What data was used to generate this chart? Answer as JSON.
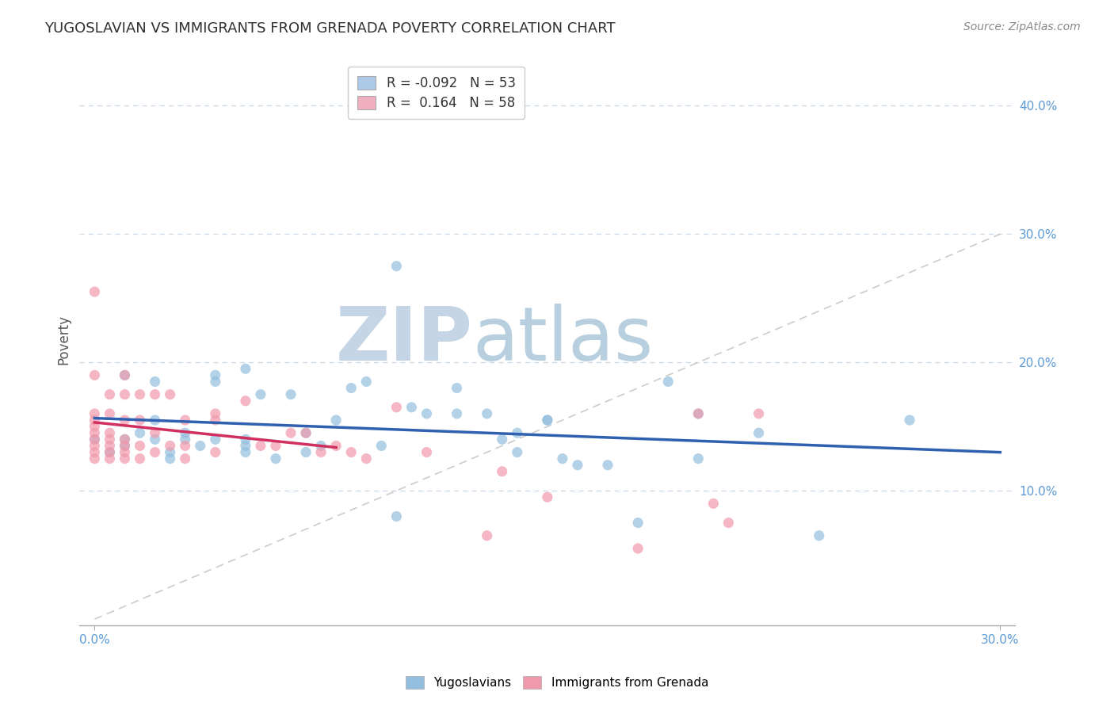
{
  "title": "YUGOSLAVIAN VS IMMIGRANTS FROM GRENADA POVERTY CORRELATION CHART",
  "source": "Source: ZipAtlas.com",
  "ylabel_label": "Poverty",
  "xlim": [
    -0.005,
    0.305
  ],
  "ylim": [
    -0.005,
    0.44
  ],
  "x_ticks": [
    0.0,
    0.3
  ],
  "x_tick_labels": [
    "0.0%",
    "30.0%"
  ],
  "y_ticks": [
    0.1,
    0.2,
    0.3,
    0.4
  ],
  "y_tick_labels": [
    "10.0%",
    "20.0%",
    "30.0%",
    "40.0%"
  ],
  "grid_color": "#c8d8e8",
  "background_color": "#ffffff",
  "title_color": "#303030",
  "source_color": "#888888",
  "axis_color": "#aaaaaa",
  "tick_color": "#5b9bd5",
  "watermark_zip": "ZIP",
  "watermark_atlas": "atlas",
  "watermark_color_zip": "#c5d5e5",
  "watermark_color_atlas": "#b8cfe0",
  "legend_R1": "-0.092",
  "legend_N1": "53",
  "legend_R2": "0.164",
  "legend_N2": "58",
  "legend_color1": "#adc9e8",
  "legend_color2": "#f0b0bf",
  "series1_color": "#93bedd",
  "series2_color": "#f099aa",
  "series1_label": "Yugoslavians",
  "series2_label": "Immigrants from Grenada",
  "series1_line_color": "#3060b0",
  "series2_line_color": "#d03060",
  "diagonal_line_color": "#cccccc",
  "series1_x": [
    0.0,
    0.005,
    0.01,
    0.01,
    0.01,
    0.015,
    0.02,
    0.02,
    0.02,
    0.025,
    0.025,
    0.03,
    0.03,
    0.035,
    0.04,
    0.04,
    0.04,
    0.05,
    0.05,
    0.05,
    0.05,
    0.055,
    0.06,
    0.065,
    0.07,
    0.07,
    0.075,
    0.08,
    0.085,
    0.09,
    0.095,
    0.1,
    0.1,
    0.105,
    0.11,
    0.12,
    0.12,
    0.13,
    0.135,
    0.14,
    0.14,
    0.15,
    0.15,
    0.155,
    0.16,
    0.17,
    0.18,
    0.19,
    0.2,
    0.2,
    0.22,
    0.24,
    0.27
  ],
  "series1_y": [
    0.14,
    0.13,
    0.135,
    0.14,
    0.19,
    0.145,
    0.14,
    0.155,
    0.185,
    0.125,
    0.13,
    0.14,
    0.145,
    0.135,
    0.14,
    0.185,
    0.19,
    0.13,
    0.135,
    0.14,
    0.195,
    0.175,
    0.125,
    0.175,
    0.13,
    0.145,
    0.135,
    0.155,
    0.18,
    0.185,
    0.135,
    0.08,
    0.275,
    0.165,
    0.16,
    0.16,
    0.18,
    0.16,
    0.14,
    0.13,
    0.145,
    0.155,
    0.155,
    0.125,
    0.12,
    0.12,
    0.075,
    0.185,
    0.125,
    0.16,
    0.145,
    0.065,
    0.155
  ],
  "series2_x": [
    0.0,
    0.0,
    0.0,
    0.0,
    0.0,
    0.0,
    0.0,
    0.0,
    0.0,
    0.0,
    0.005,
    0.005,
    0.005,
    0.005,
    0.005,
    0.005,
    0.005,
    0.01,
    0.01,
    0.01,
    0.01,
    0.01,
    0.01,
    0.01,
    0.015,
    0.015,
    0.015,
    0.015,
    0.02,
    0.02,
    0.02,
    0.025,
    0.025,
    0.03,
    0.03,
    0.03,
    0.04,
    0.04,
    0.04,
    0.05,
    0.055,
    0.06,
    0.065,
    0.07,
    0.075,
    0.08,
    0.085,
    0.09,
    0.1,
    0.11,
    0.13,
    0.135,
    0.15,
    0.18,
    0.2,
    0.205,
    0.21,
    0.22
  ],
  "series2_y": [
    0.125,
    0.13,
    0.135,
    0.14,
    0.145,
    0.15,
    0.155,
    0.16,
    0.19,
    0.255,
    0.125,
    0.13,
    0.135,
    0.14,
    0.145,
    0.16,
    0.175,
    0.125,
    0.13,
    0.135,
    0.14,
    0.155,
    0.175,
    0.19,
    0.125,
    0.135,
    0.155,
    0.175,
    0.13,
    0.145,
    0.175,
    0.135,
    0.175,
    0.125,
    0.135,
    0.155,
    0.13,
    0.155,
    0.16,
    0.17,
    0.135,
    0.135,
    0.145,
    0.145,
    0.13,
    0.135,
    0.13,
    0.125,
    0.165,
    0.13,
    0.065,
    0.115,
    0.095,
    0.055,
    0.16,
    0.09,
    0.075,
    0.16
  ]
}
